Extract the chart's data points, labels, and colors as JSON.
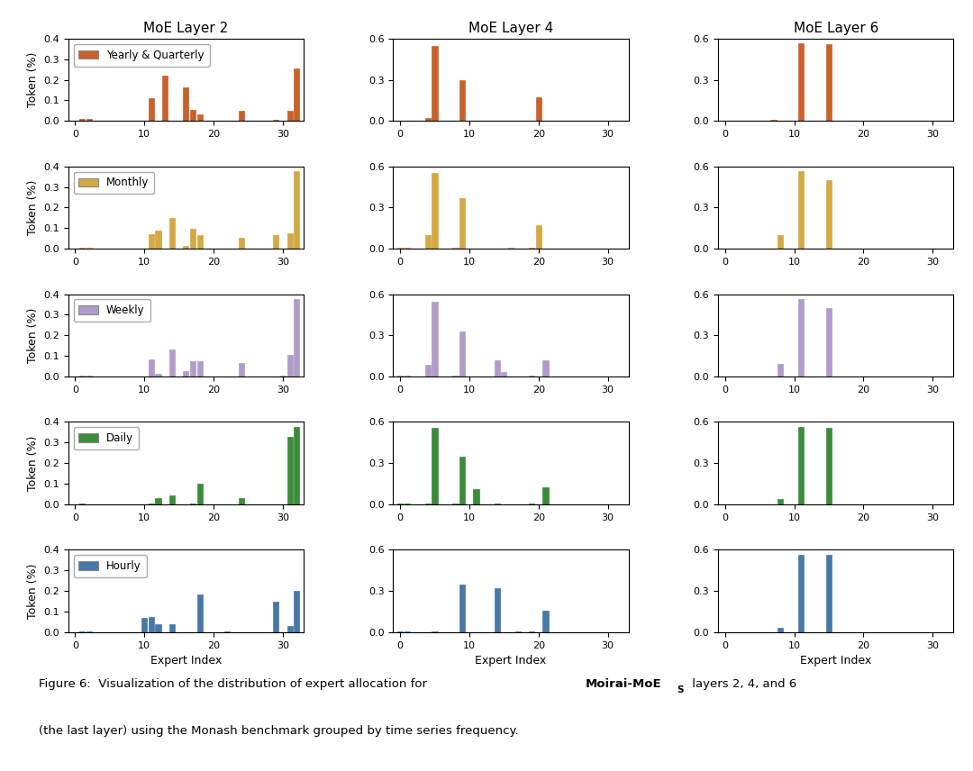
{
  "col_titles": [
    "MoE Layer 2",
    "MoE Layer 4",
    "MoE Layer 6"
  ],
  "row_labels": [
    "Yearly & Quarterly",
    "Monthly",
    "Weekly",
    "Daily",
    "Hourly"
  ],
  "colors": [
    "#c8622a",
    "#d4a843",
    "#b09cc8",
    "#3a8c3a",
    "#4878a8"
  ],
  "xlabel": "Expert Index",
  "ylabel": "Token (%)",
  "bar_width": 0.8,
  "data": {
    "layer2": {
      "yearly": {
        "indices": [
          1,
          2,
          11,
          13,
          16,
          17,
          18,
          24,
          29,
          31,
          32
        ],
        "values": [
          0.01,
          0.01,
          0.11,
          0.22,
          0.165,
          0.055,
          0.03,
          0.05,
          0.005,
          0.05,
          0.255
        ]
      },
      "monthly": {
        "indices": [
          1,
          2,
          11,
          12,
          14,
          16,
          17,
          18,
          24,
          29,
          31,
          32
        ],
        "values": [
          0.005,
          0.005,
          0.07,
          0.09,
          0.15,
          0.015,
          0.095,
          0.065,
          0.055,
          0.065,
          0.075,
          0.375
        ]
      },
      "weekly": {
        "indices": [
          1,
          2,
          11,
          12,
          14,
          16,
          17,
          18,
          24,
          30,
          31,
          32
        ],
        "values": [
          0.005,
          0.005,
          0.085,
          0.015,
          0.13,
          0.025,
          0.075,
          0.075,
          0.065,
          0.005,
          0.105,
          0.375
        ]
      },
      "daily": {
        "indices": [
          1,
          11,
          12,
          14,
          17,
          18,
          24,
          31,
          32
        ],
        "values": [
          0.005,
          0.005,
          0.03,
          0.045,
          0.005,
          0.1,
          0.03,
          0.33,
          0.375
        ]
      },
      "hourly": {
        "indices": [
          1,
          2,
          10,
          11,
          12,
          14,
          18,
          22,
          29,
          31,
          32
        ],
        "values": [
          0.005,
          0.005,
          0.07,
          0.075,
          0.04,
          0.04,
          0.185,
          0.005,
          0.15,
          0.03,
          0.2
        ]
      }
    },
    "layer4": {
      "yearly": {
        "indices": [
          0,
          1,
          4,
          5,
          9,
          19,
          20
        ],
        "values": [
          0.005,
          0.005,
          0.025,
          0.545,
          0.3,
          0.005,
          0.175
        ]
      },
      "monthly": {
        "indices": [
          0,
          1,
          4,
          5,
          8,
          9,
          16,
          19,
          20
        ],
        "values": [
          0.005,
          0.005,
          0.1,
          0.555,
          0.005,
          0.37,
          0.005,
          0.005,
          0.175
        ]
      },
      "weekly": {
        "indices": [
          0,
          1,
          4,
          5,
          8,
          9,
          14,
          15,
          19,
          21
        ],
        "values": [
          0.005,
          0.005,
          0.085,
          0.545,
          0.005,
          0.33,
          0.12,
          0.035,
          0.005,
          0.12
        ]
      },
      "daily": {
        "indices": [
          0,
          1,
          4,
          5,
          8,
          9,
          11,
          14,
          19,
          21
        ],
        "values": [
          0.005,
          0.005,
          0.005,
          0.555,
          0.005,
          0.35,
          0.11,
          0.005,
          0.005,
          0.125
        ]
      },
      "hourly": {
        "indices": [
          0,
          1,
          5,
          9,
          14,
          17,
          19,
          21
        ],
        "values": [
          0.005,
          0.005,
          0.005,
          0.35,
          0.32,
          0.005,
          0.005,
          0.155
        ]
      }
    },
    "layer6": {
      "yearly": {
        "indices": [
          7,
          11,
          15
        ],
        "values": [
          0.01,
          0.565,
          0.56
        ]
      },
      "monthly": {
        "indices": [
          8,
          11,
          15
        ],
        "values": [
          0.1,
          0.565,
          0.5
        ]
      },
      "weekly": {
        "indices": [
          8,
          11,
          15
        ],
        "values": [
          0.09,
          0.565,
          0.5
        ]
      },
      "daily": {
        "indices": [
          8,
          11,
          15
        ],
        "values": [
          0.04,
          0.565,
          0.56
        ]
      },
      "hourly": {
        "indices": [
          8,
          11,
          15
        ],
        "values": [
          0.03,
          0.565,
          0.56
        ]
      }
    }
  },
  "ylim_col0": 0.4,
  "ylim_col12": 0.6,
  "yticks_04": [
    0.0,
    0.1,
    0.2,
    0.3,
    0.4
  ],
  "yticks_06": [
    0.0,
    0.3,
    0.6
  ],
  "xticks": [
    0,
    10,
    20,
    30
  ],
  "xlim": [
    -1,
    33
  ]
}
